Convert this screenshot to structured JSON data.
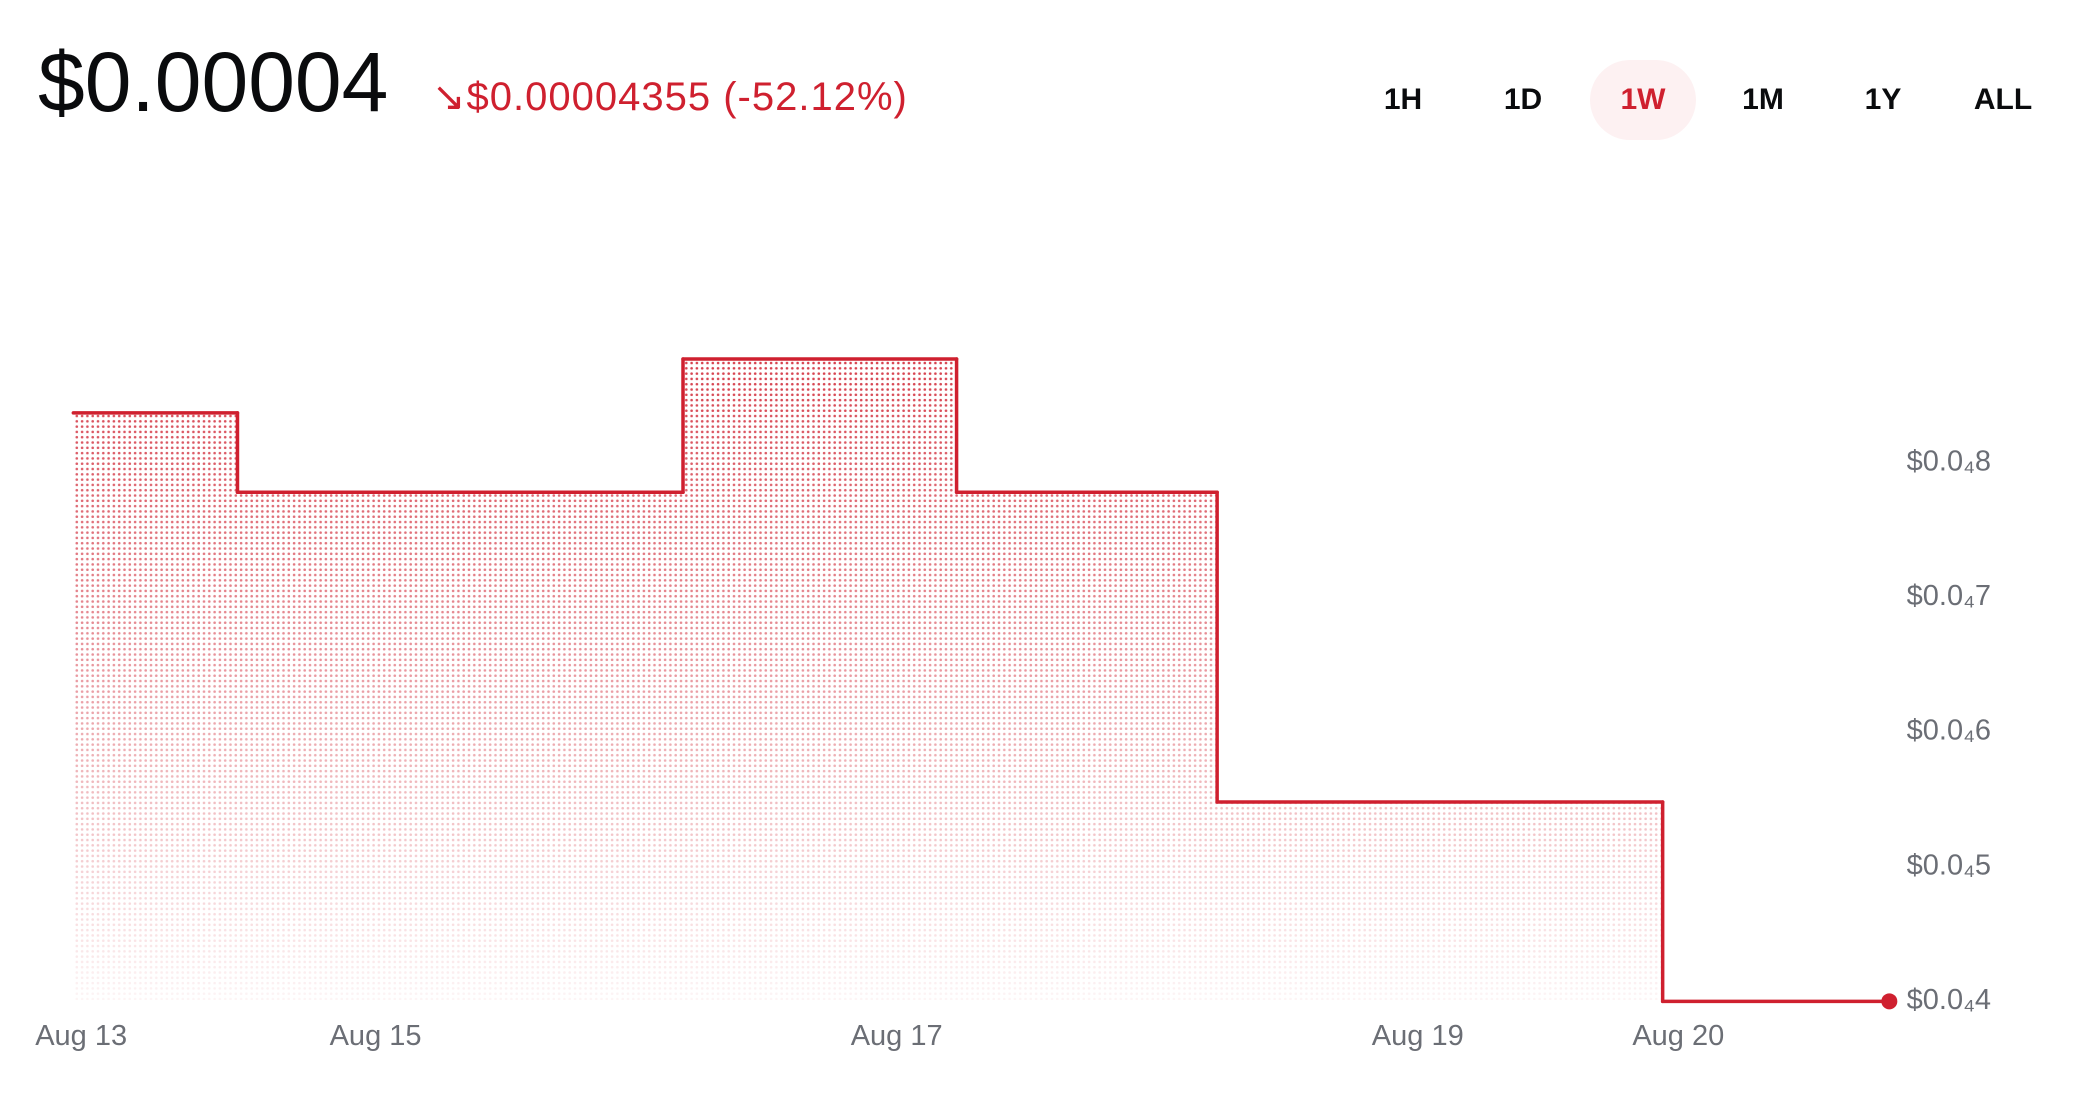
{
  "header": {
    "price": "$0.00004",
    "change": "↘$0.00004355 (-52.12%)",
    "timeframes": [
      "1H",
      "1D",
      "1W",
      "1M",
      "1Y",
      "ALL"
    ],
    "selected_timeframe": "1W"
  },
  "chart_data": {
    "type": "step",
    "color": "#cf202f",
    "x": [
      13.84,
      14.47,
      16.18,
      17.23,
      18.23,
      19.94,
      20.81
    ],
    "series": [
      {
        "values": [
          8.37e-05,
          7.78e-05,
          8.77e-05,
          7.78e-05,
          5.48e-05,
          4e-05,
          4e-05
        ]
      }
    ],
    "xlim": [
      13.84,
      20.81
    ],
    "xticks": [
      {
        "value": 13.87,
        "label": "Aug 13"
      },
      {
        "value": 15,
        "label": "Aug 15"
      },
      {
        "value": 17,
        "label": "Aug 17"
      },
      {
        "value": 19,
        "label": "Aug 19"
      },
      {
        "value": 20,
        "label": "Aug 20"
      }
    ],
    "ylim": [
      4e-05,
      9e-05
    ],
    "yticks": [
      {
        "value": 4e-05,
        "label": "$0.0₄4"
      },
      {
        "value": 5e-05,
        "label": "$0.0₄5"
      },
      {
        "value": 6e-05,
        "label": "$0.0₄6"
      },
      {
        "value": 7e-05,
        "label": "$0.0₄7"
      },
      {
        "value": 8e-05,
        "label": "$0.0₄8"
      }
    ],
    "grid": false
  }
}
